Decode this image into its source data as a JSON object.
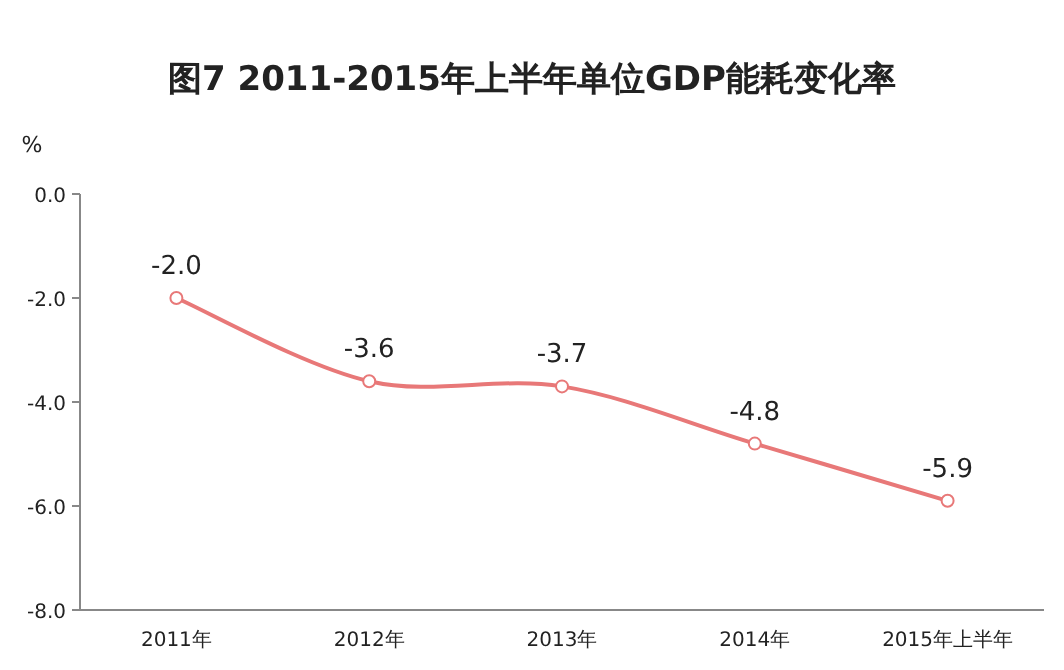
{
  "chart_data": {
    "type": "line",
    "title": "图7 2011-2015年上半年单位GDP能耗变化率",
    "ylabel": "%",
    "categories": [
      "2011年",
      "2012年",
      "2013年",
      "2014年",
      "2015年上半年"
    ],
    "series": [
      {
        "color": "#e87878",
        "values": [
          -2.0,
          -3.6,
          -3.7,
          -4.8,
          -5.9
        ],
        "value_labels": [
          "-2.0",
          "-3.6",
          "-3.7",
          "-4.8",
          "-5.9"
        ]
      }
    ],
    "ylim": [
      -8,
      0
    ],
    "yticks": [
      {
        "value": 0,
        "label": "0.0"
      },
      {
        "value": -2,
        "label": "-2.0"
      },
      {
        "value": -4,
        "label": "-4.0"
      },
      {
        "value": -6,
        "label": "-6.0"
      },
      {
        "value": -8,
        "label": "-8.0"
      }
    ],
    "marker": "circle",
    "grid": false
  }
}
